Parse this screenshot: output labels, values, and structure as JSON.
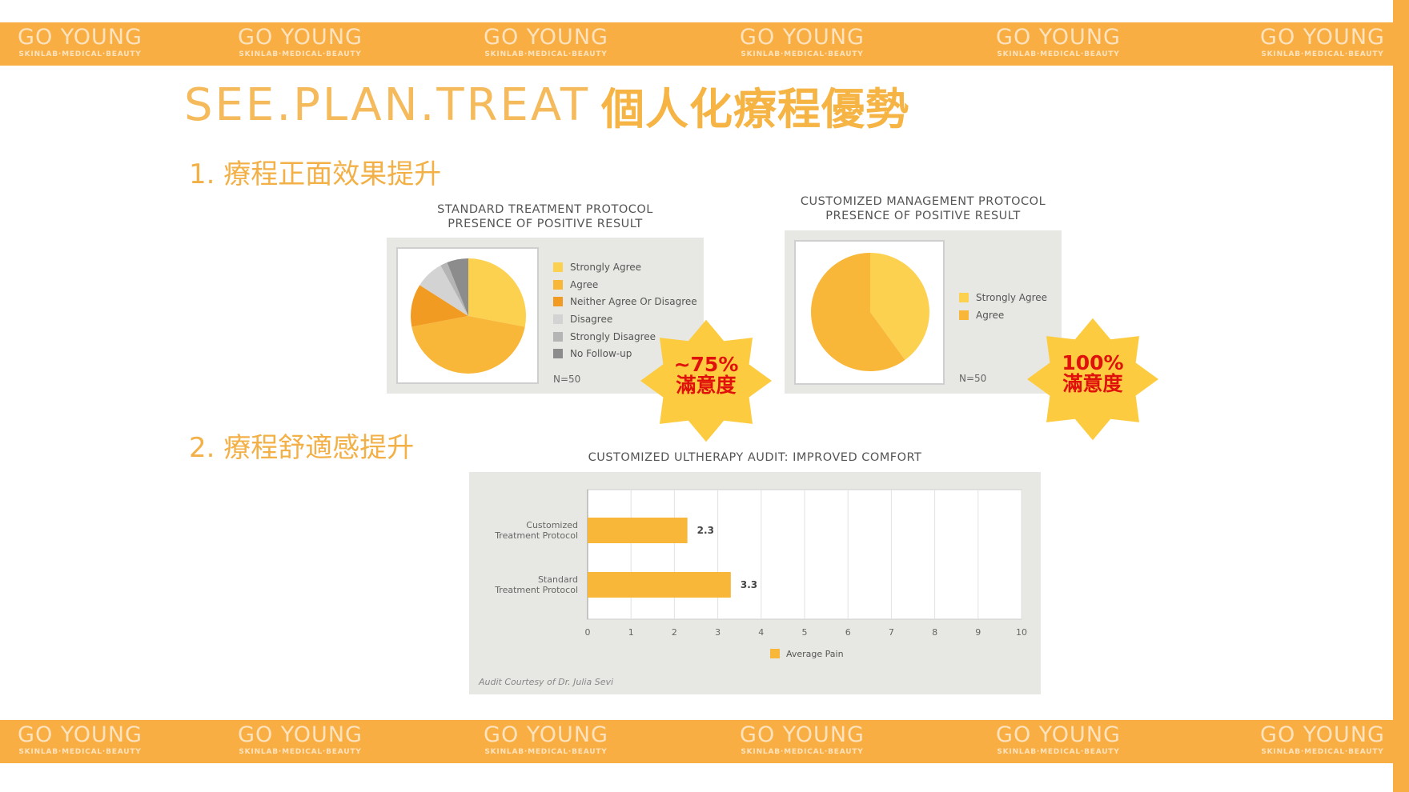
{
  "brand": {
    "logo_text": "GO YOUNG",
    "logo_subtext": "SKINLAB·MEDICAL·BEAUTY",
    "color": "#F9AE43"
  },
  "title": {
    "en": "SEE.PLAN.TREAT",
    "zh": "個人化療程優勢"
  },
  "sections": {
    "s1": "1. 療程正面效果提升",
    "s2": "2. 療程舒適感提升"
  },
  "badges": {
    "standard": {
      "line1": "~75%",
      "line2": "滿意度"
    },
    "customized": {
      "line1": "100%",
      "line2": "滿意度"
    }
  },
  "chart_data": [
    {
      "type": "pie",
      "title_line1": "STANDARD TREATMENT PROTOCOL",
      "title_line2": "PRESENCE OF POSITIVE RESULT",
      "categories": [
        "Strongly Agree",
        "Agree",
        "Neither Agree Or Disagree",
        "Disagree",
        "Strongly Disagree",
        "No Follow-up"
      ],
      "values": [
        14,
        22,
        6,
        4,
        1,
        3
      ],
      "colors": [
        "#FDD150",
        "#F9B73A",
        "#F29B23",
        "#D3D3D3",
        "#B5B5B5",
        "#8C8C8C"
      ],
      "note": "N=50",
      "legend": "right"
    },
    {
      "type": "pie",
      "title_line1": "CUSTOMIZED MANAGEMENT PROTOCOL",
      "title_line2": "PRESENCE OF POSITIVE RESULT",
      "categories": [
        "Strongly Agree",
        "Agree"
      ],
      "values": [
        20,
        30
      ],
      "colors": [
        "#FDD150",
        "#F9B73A"
      ],
      "note": "N=50",
      "legend": "right"
    },
    {
      "type": "bar",
      "orientation": "horizontal",
      "title": "CUSTOMIZED ULTHERAPY AUDIT: IMPROVED COMFORT",
      "categories": [
        [
          "Customized",
          "Treatment Protocol"
        ],
        [
          "Standard",
          "Treatment Protocol"
        ]
      ],
      "series": [
        {
          "name": "Average Pain",
          "values": [
            2.3,
            3.3
          ],
          "color": "#F9B73A"
        }
      ],
      "xlim": [
        0,
        10
      ],
      "xticks": [
        "0",
        "1",
        "2",
        "3",
        "4",
        "5",
        "6",
        "7",
        "8",
        "9",
        "10"
      ],
      "grid": true,
      "legend": "bottom",
      "footnote": "Audit Courtesy of Dr. Julia Sevi"
    }
  ]
}
